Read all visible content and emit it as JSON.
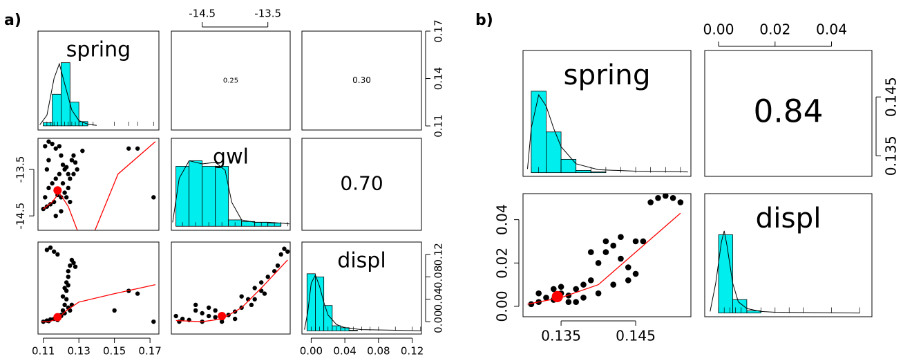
{
  "figure_labels": [
    "a)",
    "b)"
  ],
  "chart_data": [
    {
      "type": "histogram",
      "title": "spring",
      "color": "#00eeee",
      "bins": [
        0.11,
        0.115,
        0.12,
        0.125,
        0.13,
        0.135
      ],
      "values": [
        6,
        60,
        120,
        45,
        8
      ],
      "xlim": [
        0.107,
        0.175
      ],
      "ylim": [
        -8,
        180
      ],
      "density": {
        "x": [
          0.108,
          0.112,
          0.116,
          0.119,
          0.122,
          0.126,
          0.13,
          0.135,
          0.14
        ],
        "y": [
          2,
          20,
          90,
          118,
          80,
          30,
          10,
          3,
          1
        ]
      },
      "rug": [
        0.11,
        0.112,
        0.114,
        0.116,
        0.118,
        0.12,
        0.122,
        0.124,
        0.126,
        0.128,
        0.132,
        0.138,
        0.15,
        0.158,
        0.163,
        0.172
      ]
    },
    {
      "type": "correlation",
      "values": [
        0.25
      ],
      "xlim": [
        -14.97,
        -13.16
      ],
      "xaxis": "top",
      "xticks": [
        -14.5,
        -13.5
      ]
    },
    {
      "type": "correlation",
      "values": [
        0.3
      ],
      "value_labels": [
        "0.30"
      ],
      "ylim": [
        0.1074,
        0.17
      ],
      "yaxis": "right",
      "yticks": [
        0.11,
        0.14,
        0.17
      ]
    },
    {
      "type": "scatter",
      "color": "#000000",
      "fit_color": "#ff0000",
      "xlim": [
        0.107,
        0.175
      ],
      "ylim": [
        -14.81,
        -12.83
      ],
      "yaxis": "left",
      "yticks": [
        -14.5,
        -13.5
      ],
      "x": [
        0.111,
        0.113,
        0.115,
        0.117,
        0.119,
        0.12,
        0.121,
        0.122,
        0.123,
        0.124,
        0.125,
        0.124,
        0.122,
        0.12,
        0.118,
        0.116,
        0.114,
        0.112,
        0.11,
        0.111,
        0.113,
        0.115,
        0.117,
        0.119,
        0.121,
        0.123,
        0.125,
        0.126,
        0.127,
        0.128,
        0.129,
        0.127,
        0.113,
        0.112,
        0.158,
        0.163,
        0.172,
        0.132,
        0.12,
        0.117
      ],
      "values": [
        -13.0,
        -12.9,
        -12.95,
        -13.05,
        -13.0,
        -13.2,
        -13.4,
        -13.5,
        -13.45,
        -13.6,
        -13.7,
        -13.9,
        -14.0,
        -14.1,
        -14.05,
        -14.2,
        -14.25,
        -14.3,
        -14.35,
        -14.1,
        -13.9,
        -13.8,
        -13.7,
        -13.6,
        -13.8,
        -14.1,
        -14.2,
        -13.3,
        -13.2,
        -13.35,
        -13.5,
        -13.6,
        -13.3,
        -13.5,
        -13.05,
        -13.05,
        -14.1,
        -13.1,
        -14.4,
        -14.5
      ],
      "fit_x": [
        0.11,
        0.115,
        0.119,
        0.124,
        0.13,
        null,
        0.137,
        0.152,
        0.173
      ],
      "fit_y": [
        -14.35,
        -14.2,
        -14.0,
        -14.3,
        -14.9,
        null,
        -15.0,
        -13.6,
        -12.9
      ],
      "mean_x": 0.118,
      "mean_y": -13.95
    },
    {
      "type": "histogram",
      "title": "gwl",
      "color": "#00eeee",
      "bins": [
        -14.9,
        -14.7,
        -14.5,
        -14.3,
        -14.1,
        -13.9,
        -13.7,
        -13.5,
        -13.3
      ],
      "values": [
        75,
        82,
        75,
        75,
        8,
        6,
        5,
        4
      ],
      "xlim": [
        -14.97,
        -13.16
      ],
      "ylim": [
        -5,
        110
      ],
      "density": {
        "x": [
          -14.95,
          -14.85,
          -14.7,
          -14.5,
          -14.3,
          -14.15,
          -14.05,
          -13.9,
          -13.7,
          -13.5,
          -13.3,
          -13.17
        ],
        "y": [
          5,
          60,
          82,
          78,
          80,
          70,
          30,
          8,
          5,
          5,
          4,
          3
        ]
      },
      "rug": [
        -14.9,
        -14.8,
        -14.6,
        -14.4,
        -14.2,
        -14.0,
        -13.9,
        -13.7,
        -13.6,
        -13.5,
        -13.4,
        -13.3,
        -13.2
      ]
    },
    {
      "type": "correlation",
      "values": [
        0.7
      ],
      "value_labels": [
        "0.70"
      ]
    },
    {
      "type": "scatter",
      "color": "#000000",
      "fit_color": "#ff0000",
      "xlim": [
        0.107,
        0.175
      ],
      "ylim": [
        -0.022,
        0.142
      ],
      "xaxis": "bottom",
      "xticks": [
        0.11,
        0.13,
        0.15,
        0.17
      ],
      "x": [
        0.11,
        0.112,
        0.114,
        0.116,
        0.118,
        0.119,
        0.12,
        0.121,
        0.122,
        0.123,
        0.123,
        0.123,
        0.124,
        0.124,
        0.125,
        0.126,
        0.127,
        0.128,
        0.112,
        0.114,
        0.116,
        0.118,
        0.12,
        0.122,
        0.121,
        0.122,
        0.124,
        0.126,
        0.15,
        0.158,
        0.163,
        0.172,
        0.124,
        0.125,
        0.113
      ],
      "values": [
        0.0,
        0.002,
        0.004,
        0.005,
        0.003,
        0.008,
        0.012,
        0.02,
        0.03,
        0.04,
        0.055,
        0.07,
        0.065,
        0.09,
        0.1,
        0.11,
        0.105,
        0.098,
        0.128,
        0.132,
        0.125,
        0.12,
        0.01,
        0.015,
        0.045,
        0.06,
        0.025,
        0.03,
        0.02,
        0.055,
        0.05,
        0.0,
        0.08,
        0.02,
        0.001
      ],
      "fit_x": [
        0.109,
        0.113,
        0.118,
        0.123,
        0.13,
        0.15,
        0.173
      ],
      "fit_y": [
        0,
        0,
        0.005,
        0.02,
        0.035,
        0.05,
        0.066
      ],
      "mean_x": 0.118,
      "mean_y": 0.008
    },
    {
      "type": "scatter",
      "color": "#000000",
      "fit_color": "#ff0000",
      "xlim": [
        -14.97,
        -13.16
      ],
      "ylim": [
        -0.022,
        0.142
      ],
      "x": [
        -14.9,
        -14.8,
        -14.7,
        -14.6,
        -14.5,
        -14.4,
        -14.3,
        -14.2,
        -14.1,
        -14.0,
        -13.9,
        -13.8,
        -13.75,
        -13.7,
        -13.6,
        -13.55,
        -13.5,
        -13.4,
        -13.35,
        -13.3,
        -13.25,
        -13.2,
        -14.85,
        -14.6,
        -14.4,
        -14.2,
        -14.0,
        -13.9,
        -13.7,
        -13.6,
        -14.5,
        -14.3
      ],
      "values": [
        0.01,
        0.005,
        0.003,
        0.02,
        0.015,
        0.01,
        0.008,
        0.005,
        0.012,
        0.018,
        0.025,
        0.04,
        0.03,
        0.06,
        0.07,
        0.05,
        0.08,
        0.09,
        0.1,
        0.12,
        0.13,
        0.125,
        0.0,
        0.03,
        0.025,
        0.0,
        0.005,
        0.045,
        0.04,
        0.055,
        0.0,
        0.02
      ],
      "fit_x": [
        -14.9,
        -14.5,
        -14.2,
        -13.9,
        -13.6,
        -13.2
      ],
      "fit_y": [
        0.002,
        0.0,
        0.005,
        0.025,
        0.06,
        0.11
      ],
      "mean_x": -14.2,
      "mean_y": 0.01
    },
    {
      "type": "histogram",
      "title": "displ",
      "color": "#00eeee",
      "bins": [
        -0.005,
        0.005,
        0.015,
        0.025,
        0.035,
        0.045,
        0.055
      ],
      "values": [
        90,
        85,
        40,
        8,
        5,
        1
      ],
      "xlim": [
        -0.011,
        0.131
      ],
      "ylim": [
        -5,
        140
      ],
      "xaxis": "bottom",
      "xticks": [
        {
          "value": 0,
          "label": "0.00"
        },
        0.04,
        0.08,
        0.12
      ],
      "y2lim": [
        -0.022,
        0.142
      ],
      "yaxis": "right",
      "y2ticks": [
        {
          "value": 0,
          "label": "0.00"
        },
        0.04,
        0.08,
        0.12
      ],
      "density": {
        "x": [
          -0.008,
          -0.004,
          0,
          0.005,
          0.01,
          0.015,
          0.02,
          0.03,
          0.04,
          0.06,
          0.1,
          0.13
        ],
        "y": [
          2,
          30,
          75,
          88,
          70,
          45,
          25,
          10,
          5,
          2,
          1,
          0
        ]
      },
      "rug": [
        0,
        0.005,
        0.01,
        0.02,
        0.03,
        0.04,
        0.05,
        0.06,
        0.07,
        0.08,
        0.1,
        0.12,
        0.13
      ]
    },
    {
      "type": "histogram",
      "title": "spring",
      "color": "#00eeee",
      "bins": [
        0.131,
        0.133,
        0.135,
        0.137,
        0.139,
        0.141
      ],
      "values": [
        110,
        55,
        18,
        3,
        1
      ],
      "xlim": [
        0.1299,
        0.1524
      ],
      "ylim": [
        -5,
        165
      ],
      "density": {
        "x": [
          0.1305,
          0.131,
          0.132,
          0.133,
          0.134,
          0.135,
          0.137,
          0.14,
          0.145,
          0.152
        ],
        "y": [
          5,
          60,
          105,
          90,
          60,
          35,
          12,
          4,
          2,
          1
        ]
      },
      "rug": [
        0.131,
        0.132,
        0.133,
        0.135,
        0.137,
        0.139,
        0.141,
        0.143,
        0.145,
        0.147,
        0.149,
        0.151
      ]
    },
    {
      "type": "correlation",
      "values": [
        0.84
      ],
      "xlim": [
        -0.0049,
        0.0543
      ],
      "xaxis": "top",
      "xticks": [
        {
          "value": 0,
          "label": "0.00"
        },
        0.02,
        0.04
      ],
      "ylim": [
        0.1315,
        0.1529
      ],
      "yaxis": "right",
      "yticks": [
        0.135,
        0.145
      ]
    },
    {
      "type": "scatter",
      "color": "#000000",
      "fit_color": "#ff0000",
      "xlim": [
        0.1299,
        0.1524
      ],
      "ylim": [
        -0.0048,
        0.052
      ],
      "xaxis": "bottom",
      "xticks": [
        0.135,
        0.145
      ],
      "yaxis": "left",
      "yticks": [
        {
          "value": 0,
          "label": "0.00"
        },
        0.02,
        0.04
      ],
      "x": [
        0.131,
        0.132,
        0.133,
        0.134,
        0.135,
        0.136,
        0.137,
        0.138,
        0.139,
        0.14,
        0.141,
        0.142,
        0.143,
        0.144,
        0.145,
        0.146,
        0.147,
        0.148,
        0.149,
        0.15,
        0.151,
        0.132,
        0.134,
        0.136,
        0.138,
        0.14,
        0.142,
        0.144,
        0.139,
        0.141,
        0.143,
        0.145,
        0.135,
        0.137
      ],
      "values": [
        0.001,
        0.002,
        0.004,
        0.003,
        0.006,
        0.005,
        0.008,
        0.01,
        0.012,
        0.02,
        0.025,
        0.028,
        0.022,
        0.018,
        0.015,
        0.03,
        0.048,
        0.05,
        0.051,
        0.05,
        0.048,
        0.006,
        0.008,
        0.002,
        0.004,
        0.006,
        0.01,
        0.012,
        0.025,
        0.03,
        0.032,
        0.03,
        0.009,
        0.002
      ],
      "fit_x": [
        0.1305,
        0.135,
        0.14,
        0.145,
        0.151
      ],
      "fit_y": [
        0.001,
        0.004,
        0.01,
        0.025,
        0.043
      ],
      "mean_x": 0.1345,
      "mean_y": 0.0045
    },
    {
      "type": "histogram",
      "title": "displ",
      "color": "#00eeee",
      "bins": [
        0,
        0.005,
        0.01,
        0.015
      ],
      "values": [
        105,
        18,
        3
      ],
      "xlim": [
        -0.0049,
        0.0543
      ],
      "ylim": [
        -5,
        160
      ],
      "density": {
        "x": [
          -0.003,
          -0.001,
          0.001,
          0.002,
          0.003,
          0.005,
          0.007,
          0.01,
          0.015,
          0.02,
          0.05
        ],
        "y": [
          2,
          40,
          95,
          110,
          90,
          40,
          15,
          6,
          2,
          1,
          0
        ]
      },
      "rug": [
        0.0,
        0.002,
        0.004,
        0.006,
        0.008,
        0.01,
        0.015,
        0.02,
        0.025,
        0.03,
        0.04,
        0.05
      ]
    }
  ]
}
